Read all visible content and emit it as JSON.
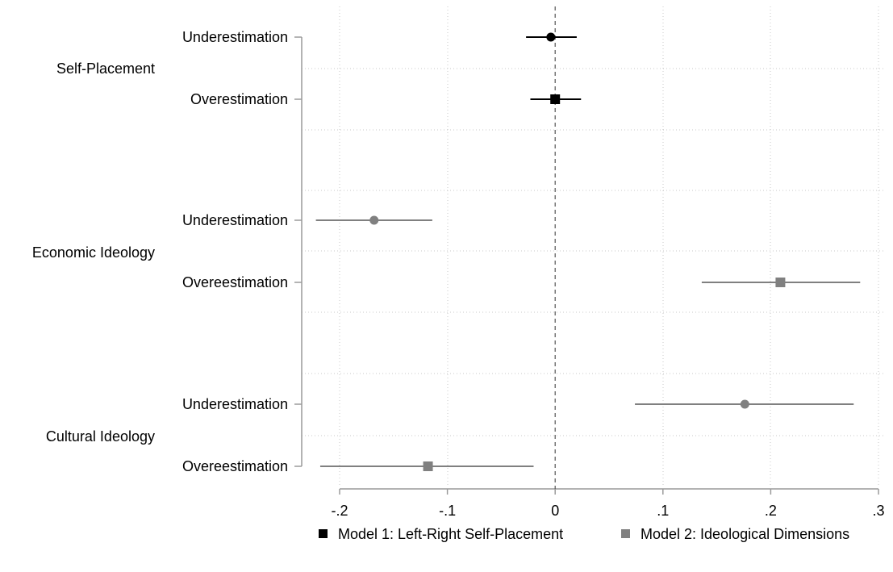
{
  "chart_data": {
    "type": "coefficient-plot",
    "title": "",
    "xlabel": "",
    "ylabel": "",
    "xlim": [
      -0.2,
      0.3
    ],
    "x_ticks": [
      -0.2,
      -0.1,
      0,
      0.1,
      0.2,
      0.3
    ],
    "x_tick_labels": [
      "-.2",
      "-.1",
      "0",
      ".1",
      ".2",
      ".3"
    ],
    "reference_line": 0,
    "grid": true,
    "legend_position": "bottom",
    "groups": [
      "Self-Placement",
      "Economic Ideology",
      "Cultural Ideology"
    ],
    "series": [
      {
        "name": "Model 1: Left-Right Self-Placement",
        "color": "#000000",
        "points": [
          {
            "group": "Self-Placement",
            "label": "Underestimation",
            "marker": "circle",
            "estimate": -0.004,
            "ci_low": -0.027,
            "ci_high": 0.02
          },
          {
            "group": "Self-Placement",
            "label": "Overestimation",
            "marker": "square",
            "estimate": 0.0,
            "ci_low": -0.023,
            "ci_high": 0.024
          }
        ]
      },
      {
        "name": "Model 2: Ideological Dimensions",
        "color": "#808080",
        "points": [
          {
            "group": "Economic Ideology",
            "label": "Underestimation",
            "marker": "circle",
            "estimate": -0.168,
            "ci_low": -0.222,
            "ci_high": -0.114
          },
          {
            "group": "Economic Ideology",
            "label": "Overeestimation",
            "marker": "square",
            "estimate": 0.209,
            "ci_low": 0.136,
            "ci_high": 0.283
          },
          {
            "group": "Cultural Ideology",
            "label": "Underestimation",
            "marker": "circle",
            "estimate": 0.176,
            "ci_low": 0.074,
            "ci_high": 0.277
          },
          {
            "group": "Cultural Ideology",
            "label": "Overeestimation",
            "marker": "square",
            "estimate": -0.118,
            "ci_low": -0.218,
            "ci_high": -0.02
          }
        ]
      }
    ]
  }
}
